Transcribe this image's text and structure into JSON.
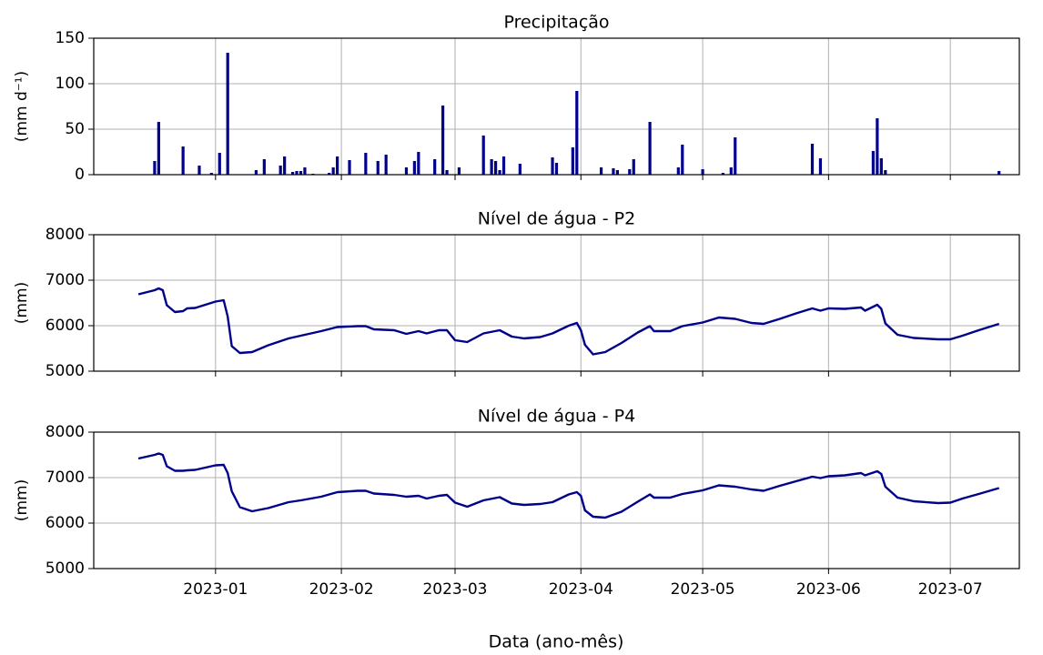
{
  "chart_data": [
    {
      "type": "bar",
      "title": "Precipitação",
      "ylabel": "(mm d⁻¹)",
      "color": "#00008b",
      "xlim": [
        "2022-12-02",
        "2023-07-18"
      ],
      "ylim": [
        0,
        150
      ],
      "yticks": [
        0,
        50,
        100,
        150
      ],
      "grid": true,
      "x": [
        "2022-12-17",
        "2022-12-18",
        "2022-12-24",
        "2022-12-28",
        "2022-12-31",
        "2023-01-02",
        "2023-01-04",
        "2023-01-11",
        "2023-01-13",
        "2023-01-17",
        "2023-01-18",
        "2023-01-20",
        "2023-01-21",
        "2023-01-22",
        "2023-01-23",
        "2023-01-25",
        "2023-01-29",
        "2023-01-30",
        "2023-01-31",
        "2023-02-03",
        "2023-02-07",
        "2023-02-10",
        "2023-02-12",
        "2023-02-17",
        "2023-02-19",
        "2023-02-20",
        "2023-02-24",
        "2023-02-26",
        "2023-02-27",
        "2023-03-02",
        "2023-03-08",
        "2023-03-10",
        "2023-03-11",
        "2023-03-12",
        "2023-03-13",
        "2023-03-17",
        "2023-03-25",
        "2023-03-26",
        "2023-03-30",
        "2023-03-31",
        "2023-04-06",
        "2023-04-09",
        "2023-04-10",
        "2023-04-13",
        "2023-04-14",
        "2023-04-18",
        "2023-04-25",
        "2023-04-26",
        "2023-05-01",
        "2023-05-06",
        "2023-05-08",
        "2023-05-09",
        "2023-05-28",
        "2023-05-30",
        "2023-06-12",
        "2023-06-13",
        "2023-06-14",
        "2023-06-15",
        "2023-07-13"
      ],
      "values": [
        15,
        58,
        31,
        10,
        2,
        24,
        134,
        5,
        17,
        10,
        20,
        3,
        4,
        4,
        8,
        1,
        2,
        8,
        20,
        16,
        24,
        15,
        22,
        8,
        15,
        25,
        17,
        76,
        5,
        8,
        43,
        17,
        15,
        5,
        20,
        12,
        19,
        13,
        30,
        92,
        8,
        7,
        5,
        6,
        17,
        58,
        8,
        33,
        6,
        2,
        8,
        41,
        34,
        18,
        26,
        62,
        18,
        5,
        4
      ]
    },
    {
      "type": "line",
      "title": "Nível de água - P2",
      "ylabel": "(mm)",
      "color": "#00008b",
      "xlim": [
        "2022-12-02",
        "2023-07-18"
      ],
      "ylim": [
        5000,
        8000
      ],
      "yticks": [
        5000,
        6000,
        7000,
        8000
      ],
      "grid": true,
      "x": [
        "2022-12-13",
        "2022-12-17",
        "2022-12-18",
        "2022-12-19",
        "2022-12-20",
        "2022-12-22",
        "2022-12-24",
        "2022-12-25",
        "2022-12-27",
        "2023-01-01",
        "2023-01-03",
        "2023-01-04",
        "2023-01-05",
        "2023-01-07",
        "2023-01-10",
        "2023-01-14",
        "2023-01-19",
        "2023-01-22",
        "2023-01-27",
        "2023-01-31",
        "2023-02-05",
        "2023-02-07",
        "2023-02-09",
        "2023-02-14",
        "2023-02-17",
        "2023-02-20",
        "2023-02-22",
        "2023-02-25",
        "2023-02-27",
        "2023-03-01",
        "2023-03-04",
        "2023-03-08",
        "2023-03-12",
        "2023-03-15",
        "2023-03-18",
        "2023-03-22",
        "2023-03-25",
        "2023-03-29",
        "2023-03-31",
        "2023-04-01",
        "2023-04-02",
        "2023-04-04",
        "2023-04-07",
        "2023-04-11",
        "2023-04-15",
        "2023-04-18",
        "2023-04-19",
        "2023-04-23",
        "2023-04-26",
        "2023-05-01",
        "2023-05-05",
        "2023-05-09",
        "2023-05-13",
        "2023-05-16",
        "2023-05-20",
        "2023-05-24",
        "2023-05-28",
        "2023-05-30",
        "2023-06-01",
        "2023-06-05",
        "2023-06-09",
        "2023-06-10",
        "2023-06-13",
        "2023-06-14",
        "2023-06-15",
        "2023-06-18",
        "2023-06-22",
        "2023-06-28",
        "2023-07-01",
        "2023-07-04",
        "2023-07-08",
        "2023-07-13"
      ],
      "values": [
        6690,
        6780,
        6820,
        6780,
        6450,
        6300,
        6320,
        6380,
        6390,
        6530,
        6560,
        6200,
        5550,
        5400,
        5420,
        5570,
        5720,
        5780,
        5880,
        5970,
        5990,
        5990,
        5920,
        5900,
        5820,
        5880,
        5830,
        5900,
        5900,
        5680,
        5640,
        5830,
        5900,
        5760,
        5720,
        5750,
        5830,
        6000,
        6060,
        5900,
        5580,
        5370,
        5420,
        5620,
        5850,
        5990,
        5880,
        5880,
        5990,
        6070,
        6180,
        6150,
        6060,
        6040,
        6150,
        6270,
        6380,
        6330,
        6380,
        6370,
        6400,
        6330,
        6460,
        6370,
        6050,
        5800,
        5730,
        5700,
        5700,
        5780,
        5900,
        6040
      ]
    },
    {
      "type": "line",
      "title": "Nível de água - P4",
      "ylabel": "(mm)",
      "xlabel": "Data (ano-mês)",
      "color": "#00008b",
      "xlim": [
        "2022-12-02",
        "2023-07-18"
      ],
      "ylim": [
        5000,
        8000
      ],
      "yticks": [
        5000,
        6000,
        7000,
        8000
      ],
      "grid": true,
      "xticks": [
        {
          "value": "2023-01-01",
          "label": "2023-01"
        },
        {
          "value": "2023-02-01",
          "label": "2023-02"
        },
        {
          "value": "2023-03-01",
          "label": "2023-03"
        },
        {
          "value": "2023-04-01",
          "label": "2023-04"
        },
        {
          "value": "2023-05-01",
          "label": "2023-05"
        },
        {
          "value": "2023-06-01",
          "label": "2023-06"
        },
        {
          "value": "2023-07-01",
          "label": "2023-07"
        }
      ],
      "x": [
        "2022-12-13",
        "2022-12-17",
        "2022-12-18",
        "2022-12-19",
        "2022-12-20",
        "2022-12-22",
        "2022-12-24",
        "2022-12-25",
        "2022-12-27",
        "2023-01-01",
        "2023-01-03",
        "2023-01-04",
        "2023-01-05",
        "2023-01-07",
        "2023-01-10",
        "2023-01-14",
        "2023-01-19",
        "2023-01-22",
        "2023-01-27",
        "2023-01-31",
        "2023-02-05",
        "2023-02-07",
        "2023-02-09",
        "2023-02-14",
        "2023-02-17",
        "2023-02-20",
        "2023-02-22",
        "2023-02-25",
        "2023-02-27",
        "2023-03-01",
        "2023-03-04",
        "2023-03-08",
        "2023-03-12",
        "2023-03-15",
        "2023-03-18",
        "2023-03-22",
        "2023-03-25",
        "2023-03-29",
        "2023-03-31",
        "2023-04-01",
        "2023-04-02",
        "2023-04-04",
        "2023-04-07",
        "2023-04-11",
        "2023-04-15",
        "2023-04-18",
        "2023-04-19",
        "2023-04-23",
        "2023-04-26",
        "2023-05-01",
        "2023-05-05",
        "2023-05-09",
        "2023-05-13",
        "2023-05-16",
        "2023-05-20",
        "2023-05-24",
        "2023-05-28",
        "2023-05-30",
        "2023-06-01",
        "2023-06-05",
        "2023-06-09",
        "2023-06-10",
        "2023-06-13",
        "2023-06-14",
        "2023-06-15",
        "2023-06-18",
        "2023-06-22",
        "2023-06-28",
        "2023-07-01",
        "2023-07-04",
        "2023-07-08",
        "2023-07-13"
      ],
      "values": [
        7420,
        7500,
        7530,
        7500,
        7250,
        7150,
        7150,
        7160,
        7170,
        7270,
        7280,
        7100,
        6700,
        6350,
        6260,
        6330,
        6460,
        6500,
        6580,
        6680,
        6710,
        6710,
        6650,
        6620,
        6580,
        6600,
        6540,
        6600,
        6620,
        6450,
        6360,
        6500,
        6570,
        6430,
        6400,
        6420,
        6460,
        6630,
        6680,
        6600,
        6280,
        6140,
        6120,
        6250,
        6470,
        6630,
        6560,
        6560,
        6640,
        6720,
        6830,
        6800,
        6740,
        6710,
        6820,
        6920,
        7020,
        6990,
        7030,
        7050,
        7100,
        7050,
        7140,
        7080,
        6800,
        6560,
        6480,
        6440,
        6450,
        6540,
        6640,
        6770
      ]
    }
  ]
}
